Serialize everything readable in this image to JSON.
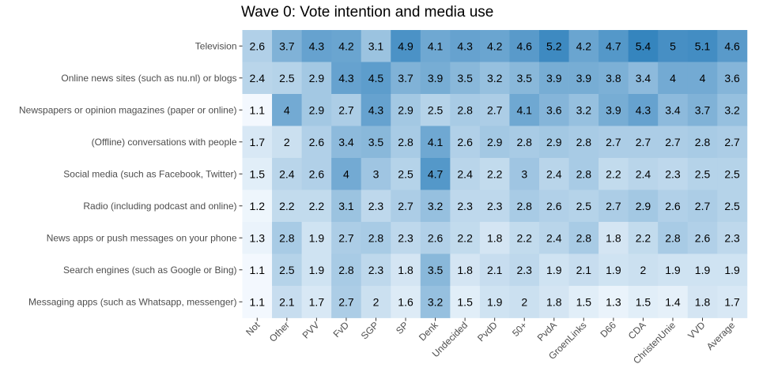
{
  "chart_data": {
    "type": "heatmap",
    "title": "Wave 0: Vote intention and media use",
    "xlabel": "",
    "ylabel": "",
    "grid": false,
    "legend": "none",
    "color_low": "#f7fbff",
    "color_high": "#3182bd",
    "value_range": [
      1.0,
      5.5
    ],
    "columns": [
      "Not",
      "Other",
      "PVV",
      "FvD",
      "SGP",
      "SP",
      "Denk",
      "Undecided",
      "PvdD",
      "50+",
      "PvdA",
      "GroenLinks",
      "D66",
      "CDA",
      "ChristenUnie",
      "VVD",
      "Average"
    ],
    "rows": [
      "Television",
      "Online news sites (such as nu.nl) or blogs",
      "Newspapers or opinion magazines (paper or online)",
      "(Offline) conversations with people",
      "Social media (such as Facebook, Twitter)",
      "Radio (including podcast and online)",
      "News apps or push messages on your phone",
      "Search engines (such as Google or Bing)",
      "Messaging apps (such as Whatsapp, messenger)"
    ],
    "values": [
      [
        2.6,
        3.7,
        4.3,
        4.2,
        3.1,
        4.9,
        4.1,
        4.3,
        4.2,
        4.6,
        5.2,
        4.2,
        4.7,
        5.4,
        5,
        5.1,
        4.6
      ],
      [
        2.4,
        2.5,
        2.9,
        4.3,
        4.5,
        3.7,
        3.9,
        3.5,
        3.2,
        3.5,
        3.9,
        3.9,
        3.8,
        3.4,
        4,
        4,
        3.6
      ],
      [
        1.1,
        4,
        2.9,
        2.7,
        4.3,
        2.9,
        2.5,
        2.8,
        2.7,
        4.1,
        3.6,
        3.2,
        3.9,
        4.3,
        3.4,
        3.7,
        3.2
      ],
      [
        1.7,
        2,
        2.6,
        3.4,
        3.5,
        2.8,
        4.1,
        2.6,
        2.9,
        2.8,
        2.9,
        2.8,
        2.7,
        2.7,
        2.7,
        2.8,
        2.7
      ],
      [
        1.5,
        2.4,
        2.6,
        4,
        3,
        2.5,
        4.7,
        2.4,
        2.2,
        3,
        2.4,
        2.8,
        2.2,
        2.4,
        2.3,
        2.5,
        2.5
      ],
      [
        1.2,
        2.2,
        2.2,
        3.1,
        2.3,
        2.7,
        3.2,
        2.3,
        2.3,
        2.8,
        2.6,
        2.5,
        2.7,
        2.9,
        2.6,
        2.7,
        2.5
      ],
      [
        1.3,
        2.8,
        1.9,
        2.7,
        2.8,
        2.3,
        2.6,
        2.2,
        1.8,
        2.2,
        2.4,
        2.8,
        1.8,
        2.2,
        2.8,
        2.6,
        2.3
      ],
      [
        1.1,
        2.5,
        1.9,
        2.8,
        2.3,
        1.8,
        3.5,
        1.8,
        2.1,
        2.3,
        1.9,
        2.1,
        1.9,
        2,
        1.9,
        1.9,
        1.9
      ],
      [
        1.1,
        2.1,
        1.7,
        2.7,
        2,
        1.6,
        3.2,
        1.5,
        1.9,
        2,
        1.8,
        1.5,
        1.3,
        1.5,
        1.4,
        1.8,
        1.7
      ]
    ]
  }
}
